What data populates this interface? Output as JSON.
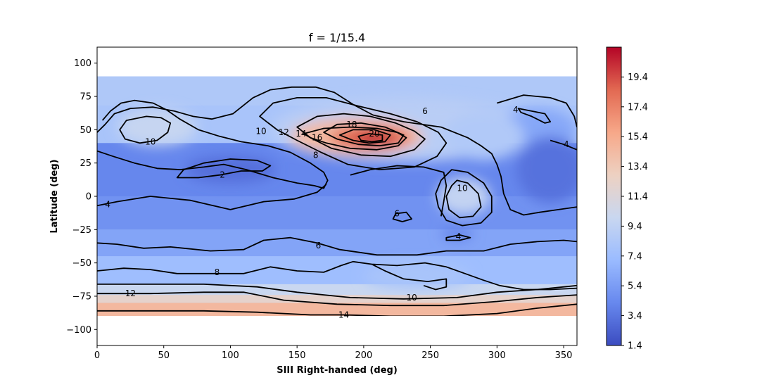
{
  "chart_data": {
    "type": "heatmap",
    "title": "f = 1/15.4",
    "xlabel": "SIII Right-handed (deg)",
    "ylabel": "Latitude (deg)",
    "xlim": [
      0,
      360
    ],
    "ylim": [
      -112,
      112
    ],
    "data_extent": {
      "lon": [
        0,
        360
      ],
      "lat": [
        -90,
        90
      ]
    },
    "xticks": [
      0,
      50,
      100,
      150,
      200,
      250,
      300,
      350
    ],
    "yticks": [
      100,
      75,
      50,
      25,
      0,
      -25,
      -50,
      -75,
      -100
    ],
    "ytick_labels": [
      "100",
      "75",
      "50",
      "25",
      "0",
      "−25",
      "−50",
      "−75",
      "−100"
    ],
    "grid": false,
    "colormap": "coolwarm",
    "colorbar": {
      "vmin": 1.4,
      "vmax": 21.4,
      "ticks": [
        1.4,
        3.4,
        5.4,
        7.4,
        9.4,
        11.4,
        13.4,
        15.4,
        17.4,
        19.4
      ],
      "colors": [
        "#3b4cc0",
        "#6788ee",
        "#9abbff",
        "#c9d7f0",
        "#edd1c2",
        "#f7a889",
        "#e26952",
        "#b40426"
      ]
    },
    "contour_color": "#000000",
    "contour_levels": [
      2,
      4,
      6,
      8,
      10,
      12,
      14,
      16,
      18,
      20
    ],
    "contour_labels": [
      {
        "text": "10",
        "lon": 40,
        "lat": 41
      },
      {
        "text": "2",
        "lon": 94,
        "lat": 16
      },
      {
        "text": "4",
        "lon": 8,
        "lat": -6
      },
      {
        "text": "10",
        "lon": 123,
        "lat": 49
      },
      {
        "text": "12",
        "lon": 140,
        "lat": 48
      },
      {
        "text": "14",
        "lon": 153,
        "lat": 47
      },
      {
        "text": "16",
        "lon": 165,
        "lat": 44
      },
      {
        "text": "18",
        "lon": 191,
        "lat": 54
      },
      {
        "text": "20",
        "lon": 208,
        "lat": 47
      },
      {
        "text": "8",
        "lon": 164,
        "lat": 31
      },
      {
        "text": "6",
        "lon": 246,
        "lat": 64
      },
      {
        "text": "4",
        "lon": 314,
        "lat": 65
      },
      {
        "text": "4",
        "lon": 352,
        "lat": 39
      },
      {
        "text": "10",
        "lon": 274,
        "lat": 6
      },
      {
        "text": "6",
        "lon": 225,
        "lat": -13
      },
      {
        "text": "4",
        "lon": 271,
        "lat": -30
      },
      {
        "text": "6",
        "lon": 166,
        "lat": -37
      },
      {
        "text": "8",
        "lon": 90,
        "lat": -57
      },
      {
        "text": "12",
        "lon": 25,
        "lat": -73
      },
      {
        "text": "10",
        "lon": 236,
        "lat": -76
      },
      {
        "text": "14",
        "lon": 185,
        "lat": -89
      }
    ]
  }
}
